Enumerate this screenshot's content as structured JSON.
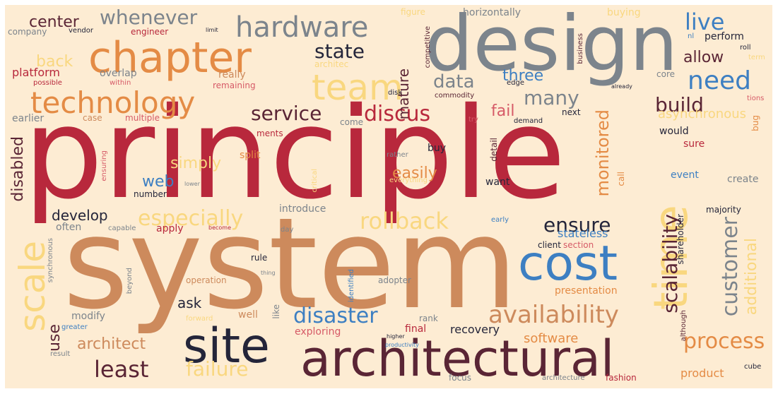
{
  "colors": {
    "background": "#fdecd3",
    "crimson": "#b8283c",
    "tan": "#cd8a5c",
    "slate": "#7c848c",
    "blue": "#3d7fc2",
    "gold": "#f9d77f",
    "wine": "#5a2535",
    "orange": "#e48b45",
    "rose": "#d65a67",
    "navy": "#24253a"
  },
  "words": [
    {
      "id": "principle",
      "text": "principle"
    },
    {
      "id": "system",
      "text": "system"
    },
    {
      "id": "design",
      "text": "design"
    },
    {
      "id": "chapter",
      "text": "chapter"
    },
    {
      "id": "architectural",
      "text": "architectural"
    },
    {
      "id": "site",
      "text": "site"
    },
    {
      "id": "cost",
      "text": "cost"
    },
    {
      "id": "time",
      "text": "time"
    },
    {
      "id": "scale",
      "text": "scale"
    },
    {
      "id": "team",
      "text": "team"
    },
    {
      "id": "technology",
      "text": "technology"
    },
    {
      "id": "hardware",
      "text": "hardware"
    },
    {
      "id": "availability",
      "text": "availability"
    },
    {
      "id": "need",
      "text": "need"
    },
    {
      "id": "rollback",
      "text": "rollback"
    },
    {
      "id": "service",
      "text": "service"
    },
    {
      "id": "discus",
      "text": "discus"
    },
    {
      "id": "disaster",
      "text": "disaster"
    },
    {
      "id": "process",
      "text": "process"
    },
    {
      "id": "least",
      "text": "least"
    },
    {
      "id": "failure",
      "text": "failure"
    },
    {
      "id": "especially",
      "text": "especially"
    },
    {
      "id": "scalability",
      "text": "scalability"
    },
    {
      "id": "customer",
      "text": "customer"
    },
    {
      "id": "state",
      "text": "state"
    },
    {
      "id": "center",
      "text": "center"
    },
    {
      "id": "whenever",
      "text": "whenever"
    },
    {
      "id": "live",
      "text": "live"
    },
    {
      "id": "data",
      "text": "data"
    },
    {
      "id": "many",
      "text": "many"
    },
    {
      "id": "build",
      "text": "build"
    },
    {
      "id": "ensure",
      "text": "ensure"
    },
    {
      "id": "architect",
      "text": "architect"
    },
    {
      "id": "develop",
      "text": "develop"
    },
    {
      "id": "monitored",
      "text": "monitored"
    },
    {
      "id": "additional",
      "text": "additional"
    },
    {
      "id": "easily",
      "text": "easily"
    },
    {
      "id": "simply",
      "text": "simply"
    },
    {
      "id": "back",
      "text": "back"
    },
    {
      "id": "three",
      "text": "three"
    },
    {
      "id": "allow",
      "text": "allow"
    },
    {
      "id": "mature",
      "text": "mature"
    },
    {
      "id": "web",
      "text": "web"
    },
    {
      "id": "fail",
      "text": "fail"
    },
    {
      "id": "disabled",
      "text": "disabled"
    },
    {
      "id": "asynchronous",
      "text": "asynchronous"
    },
    {
      "id": "platform",
      "text": "platform"
    },
    {
      "id": "use",
      "text": "use"
    },
    {
      "id": "ask",
      "text": "ask"
    },
    {
      "id": "recovery",
      "text": "recovery"
    },
    {
      "id": "software",
      "text": "software"
    },
    {
      "id": "product",
      "text": "product"
    },
    {
      "id": "stateless",
      "text": "stateless"
    },
    {
      "id": "presentation",
      "text": "presentation"
    },
    {
      "id": "exploring",
      "text": "exploring"
    },
    {
      "id": "final",
      "text": "final"
    },
    {
      "id": "modify",
      "text": "modify"
    },
    {
      "id": "well",
      "text": "well"
    },
    {
      "id": "like",
      "text": "like"
    },
    {
      "id": "company",
      "text": "company"
    },
    {
      "id": "engineer",
      "text": "engineer"
    },
    {
      "id": "figure",
      "text": "figure"
    },
    {
      "id": "horizontally",
      "text": "horizontally"
    },
    {
      "id": "buying",
      "text": "buying"
    },
    {
      "id": "perform",
      "text": "perform"
    },
    {
      "id": "overlap",
      "text": "overlap"
    },
    {
      "id": "really",
      "text": "really"
    },
    {
      "id": "remaining",
      "text": "remaining"
    },
    {
      "id": "earlier",
      "text": "earlier"
    },
    {
      "id": "case",
      "text": "case"
    },
    {
      "id": "multiple",
      "text": "multiple"
    },
    {
      "id": "possible",
      "text": "possible"
    },
    {
      "id": "within",
      "text": "within"
    },
    {
      "id": "core",
      "text": "core"
    },
    {
      "id": "next",
      "text": "next"
    },
    {
      "id": "would",
      "text": "would"
    },
    {
      "id": "sure",
      "text": "sure"
    },
    {
      "id": "event",
      "text": "event"
    },
    {
      "id": "create",
      "text": "create"
    },
    {
      "id": "majority",
      "text": "majority"
    },
    {
      "id": "call",
      "text": "call"
    },
    {
      "id": "client",
      "text": "client"
    },
    {
      "id": "section",
      "text": "section"
    },
    {
      "id": "shareholder",
      "text": "shareholder"
    },
    {
      "id": "buy",
      "text": "buy"
    },
    {
      "id": "want",
      "text": "want"
    },
    {
      "id": "detail",
      "text": "detail"
    },
    {
      "id": "introduce",
      "text": "introduce"
    },
    {
      "id": "often",
      "text": "often"
    },
    {
      "id": "apply",
      "text": "apply"
    },
    {
      "id": "capable",
      "text": "capable"
    },
    {
      "id": "number",
      "text": "number"
    },
    {
      "id": "rule",
      "text": "rule"
    },
    {
      "id": "operation",
      "text": "operation"
    },
    {
      "id": "adopter",
      "text": "adopter"
    },
    {
      "id": "rank",
      "text": "rank"
    },
    {
      "id": "greater",
      "text": "greater"
    },
    {
      "id": "split",
      "text": "split"
    },
    {
      "id": "ensuring",
      "text": "ensuring"
    },
    {
      "id": "identified",
      "text": "identified"
    },
    {
      "id": "come",
      "text": "come"
    },
    {
      "id": "demand",
      "text": "demand"
    },
    {
      "id": "edge",
      "text": "edge"
    },
    {
      "id": "disk",
      "text": "disk"
    },
    {
      "id": "commodity",
      "text": "commodity"
    },
    {
      "id": "architec",
      "text": "architec"
    },
    {
      "id": "competitive",
      "text": "competitive"
    },
    {
      "id": "business",
      "text": "business"
    },
    {
      "id": "vendor",
      "text": "vendor"
    },
    {
      "id": "limit",
      "text": "limit"
    },
    {
      "id": "roll",
      "text": "roll"
    },
    {
      "id": "term",
      "text": "term"
    },
    {
      "id": "tions",
      "text": "tions"
    },
    {
      "id": "bug",
      "text": "bug"
    },
    {
      "id": "ments",
      "text": "ments"
    },
    {
      "id": "try",
      "text": "try"
    },
    {
      "id": "rather",
      "text": "rather"
    },
    {
      "id": "critical",
      "text": "critical"
    },
    {
      "id": "everything",
      "text": "everything"
    },
    {
      "id": "lower",
      "text": "lower"
    },
    {
      "id": "become",
      "text": "become"
    },
    {
      "id": "day",
      "text": "day"
    },
    {
      "id": "early",
      "text": "early"
    },
    {
      "id": "beyond",
      "text": "beyond"
    },
    {
      "id": "thing",
      "text": "thing"
    },
    {
      "id": "synchronous",
      "text": "synchronous"
    },
    {
      "id": "result",
      "text": "result"
    },
    {
      "id": "forward",
      "text": "forward"
    },
    {
      "id": "higher",
      "text": "higher"
    },
    {
      "id": "productivity",
      "text": "productivity"
    },
    {
      "id": "focus",
      "text": "focus"
    },
    {
      "id": "architecture",
      "text": "architecture"
    },
    {
      "id": "fashion",
      "text": "fashion"
    },
    {
      "id": "cube",
      "text": "cube"
    },
    {
      "id": "although",
      "text": "although"
    },
    {
      "id": "nl",
      "text": "nl"
    },
    {
      "id": "already",
      "text": "already"
    }
  ]
}
